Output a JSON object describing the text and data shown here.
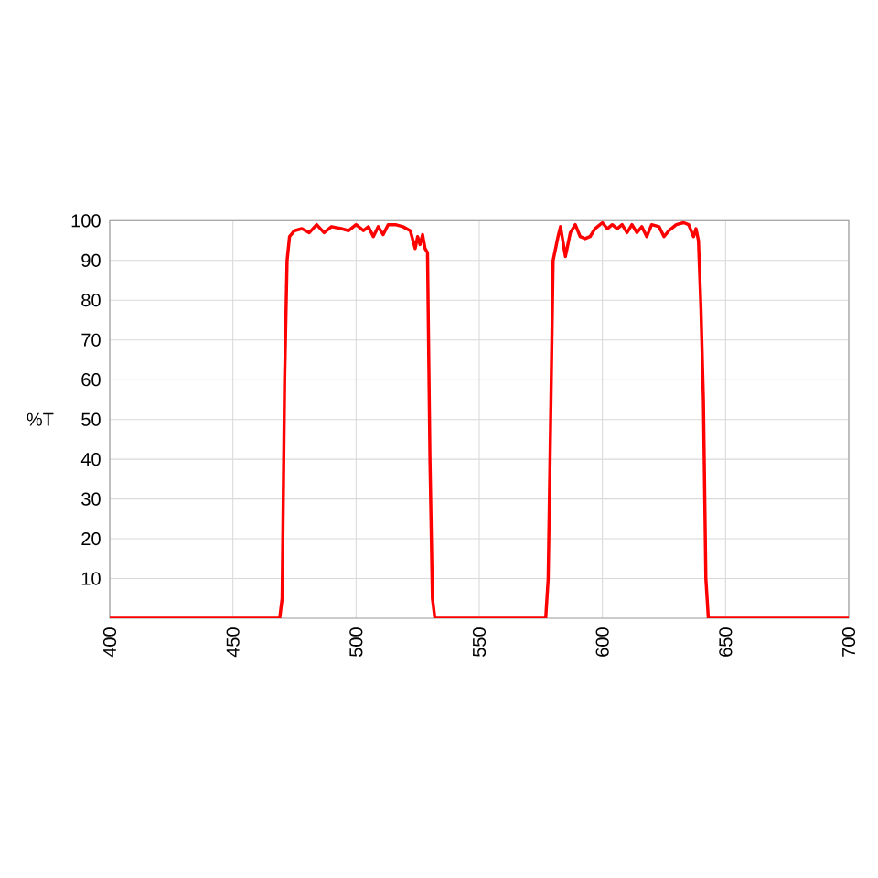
{
  "chart_data": {
    "type": "line",
    "ylabel": "%T",
    "x": [
      400,
      469,
      470,
      471,
      472,
      473,
      475,
      478,
      481,
      484,
      487,
      490,
      494,
      497,
      500,
      503,
      505,
      507,
      509,
      511,
      513,
      516,
      519,
      522,
      524,
      525,
      526,
      527,
      528,
      529,
      530,
      531,
      532,
      577,
      578,
      579,
      580,
      582,
      583,
      585,
      587,
      589,
      591,
      593,
      595,
      597,
      600,
      602,
      604,
      606,
      608,
      610,
      612,
      614,
      616,
      618,
      620,
      623,
      625,
      627,
      630,
      633,
      635,
      637,
      638,
      639,
      640,
      641,
      642,
      643,
      700
    ],
    "series": [
      {
        "color": "#ff0000",
        "values": [
          0,
          0,
          5,
          60,
          90,
          96,
          97.5,
          98,
          97,
          99,
          97,
          98.5,
          98,
          97.5,
          99,
          97.5,
          98.5,
          96,
          98.5,
          96.5,
          99,
          99,
          98.5,
          97.5,
          93,
          96,
          94,
          96.5,
          93,
          92,
          40,
          5,
          0,
          0,
          10,
          50,
          90,
          96,
          98.5,
          91,
          97,
          99,
          96,
          95.5,
          96,
          98,
          99.5,
          98,
          99,
          98,
          99,
          97,
          99,
          97,
          98.5,
          96,
          99,
          98.5,
          96,
          97.5,
          99,
          99.5,
          99,
          96,
          98,
          95,
          78,
          55,
          10,
          0,
          0
        ]
      }
    ],
    "xlim": [
      400,
      700
    ],
    "ylim": [
      0,
      100
    ],
    "xticks": [
      400,
      450,
      500,
      550,
      600,
      650,
      700
    ],
    "yticks": [
      10,
      20,
      30,
      40,
      50,
      60,
      70,
      80,
      90,
      100
    ],
    "grid": true,
    "marker": "none",
    "line_style": "solid"
  }
}
